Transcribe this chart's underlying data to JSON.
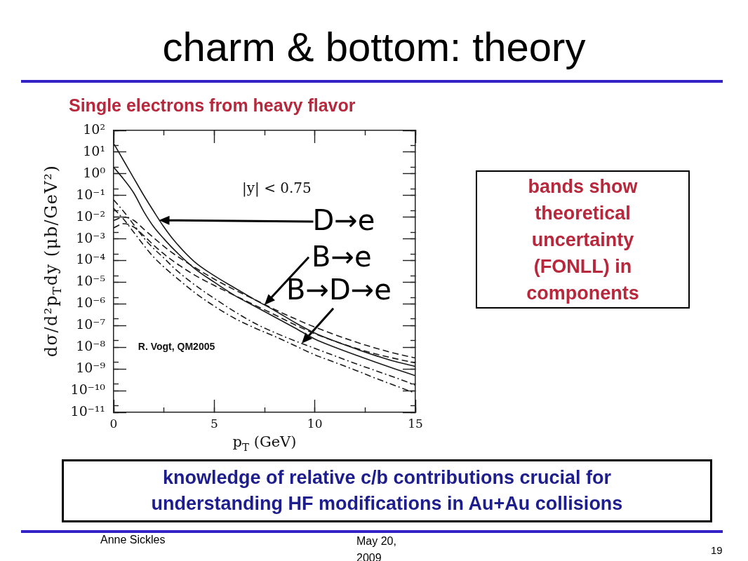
{
  "chart_data": {
    "type": "line",
    "title": "charm & bottom: theory",
    "subtitle": "Single electrons from heavy flavor",
    "xlabel": "p$_{T}$ (GeV)",
    "ylabel": "dσ/d²p$_{T}$dy (μb/GeV²)",
    "x": [
      0,
      0.5,
      1,
      1.5,
      2,
      2.5,
      3,
      4,
      5,
      6,
      7,
      8,
      9,
      10,
      11,
      12,
      13,
      14,
      15
    ],
    "series": [
      {
        "color": "#1a1a1a",
        "line_style": "solid",
        "values": [
          25,
          4.0,
          0.63,
          0.1,
          0.018,
          0.0035,
          0.00085,
          9.1e-05,
          2e-05,
          5.6e-06,
          1.6e-06,
          5e-07,
          1.4e-07,
          4.5e-08,
          1.9e-08,
          8.7e-09,
          4.2e-09,
          2.2e-09,
          1.3e-09
        ]
      },
      {
        "color": "#1a1a1a",
        "line_style": "solid",
        "values": [
          2.0,
          0.56,
          0.13,
          0.018,
          0.0035,
          0.001,
          0.00032,
          4.5e-05,
          1e-05,
          2.5e-06,
          7.9e-07,
          2.5e-07,
          7.9e-08,
          2.4e-08,
          1e-08,
          4.5e-09,
          2.1e-09,
          1e-09,
          4.9e-10
        ]
      },
      {
        "color": "#1a1a1a",
        "line_style": "dashed",
        "values": [
          0.0071,
          0.01,
          0.0071,
          0.0028,
          0.0011,
          0.00045,
          0.0002,
          5e-05,
          1.4e-05,
          4.5e-06,
          1.6e-06,
          5.6e-07,
          2.1e-07,
          8.5e-08,
          3.8e-08,
          1.8e-08,
          9.3e-09,
          5.2e-09,
          3.2e-09
        ]
      },
      {
        "color": "#1a1a1a",
        "line_style": "dashed",
        "values": [
          0.0032,
          0.005,
          0.0035,
          0.0014,
          0.0005,
          0.0002,
          8.9e-05,
          2.2e-05,
          7.1e-06,
          2.5e-06,
          8.9e-07,
          3.2e-07,
          1.1e-07,
          4.2e-08,
          1.9e-08,
          9.3e-09,
          5e-09,
          3e-09,
          1.9e-09
        ]
      },
      {
        "color": "#1a1a1a",
        "line_style": "dashdot",
        "values": [
          0.063,
          0.018,
          0.0045,
          0.0011,
          0.00035,
          0.00013,
          4.5e-05,
          7.9e-06,
          1.8e-06,
          4.5e-07,
          1.3e-07,
          4.8e-08,
          2e-08,
          8.9e-09,
          4e-09,
          1.8e-09,
          8.5e-10,
          4e-10,
          1.8e-10
        ]
      },
      {
        "color": "#1a1a1a",
        "line_style": "dashdot",
        "values": [
          0.025,
          0.0079,
          0.002,
          0.0005,
          0.00014,
          5e-05,
          2e-05,
          3.5e-06,
          7.9e-07,
          2.2e-07,
          7.9e-08,
          3.2e-08,
          1.2e-08,
          4.5e-09,
          2e-09,
          8.9e-10,
          3.8e-10,
          1.7e-10,
          7.6e-11
        ]
      }
    ],
    "log": "y",
    "marker": "none",
    "xlim": [
      0,
      15
    ],
    "xticks": [
      0,
      {
        "value": 2.5,
        "label": null
      },
      5,
      {
        "value": 7.5,
        "label": null
      },
      10,
      {
        "value": 12.5,
        "label": null
      },
      15
    ],
    "ylim": [
      1e-11,
      100
    ],
    "yticks": [
      {
        "value": 1e-11,
        "label": "10⁻¹¹"
      },
      {
        "value": 2e-11,
        "label": null
      },
      {
        "value": 1e-10,
        "label": "10⁻¹⁰"
      },
      {
        "value": 2e-10,
        "label": null
      },
      {
        "value": 1e-09,
        "label": "10⁻⁹"
      },
      {
        "value": 2e-09,
        "label": null
      },
      {
        "value": 1e-08,
        "label": "10⁻⁸"
      },
      {
        "value": 2e-08,
        "label": null
      },
      {
        "value": 1e-07,
        "label": "10⁻⁷"
      },
      {
        "value": 2e-07,
        "label": null
      },
      {
        "value": 1e-06,
        "label": "10⁻⁶"
      },
      {
        "value": 2e-06,
        "label": null
      },
      {
        "value": 1e-05,
        "label": "10⁻⁵"
      },
      {
        "value": 2e-05,
        "label": null
      },
      {
        "value": 0.0001,
        "label": "10⁻⁴"
      },
      {
        "value": 0.0002,
        "label": null
      },
      {
        "value": 0.001,
        "label": "10⁻³"
      },
      {
        "value": 0.002,
        "label": null
      },
      {
        "value": 0.01,
        "label": "10⁻²"
      },
      {
        "value": 0.02,
        "label": null
      },
      {
        "value": 0.1,
        "label": "10⁻¹"
      },
      {
        "value": 0.2,
        "label": null
      },
      {
        "value": 1,
        "label": "10⁰"
      },
      {
        "value": 2,
        "label": null
      },
      {
        "value": 10,
        "label": "10¹"
      },
      {
        "value": 20,
        "label": null
      },
      {
        "value": 100,
        "label": "10²"
      }
    ],
    "annotations": [
      "D→e",
      {
        "text": "B→e",
        "x": 7.5,
        "y": 9e-07
      },
      {
        "text": "B→D→e",
        "x": 9.35,
        "y": 1.5e-08
      },
      "|y| < 0.75",
      "R. Vogt, QM2005",
      "bands show theoretical uncertainty (FONLL) in components",
      "knowledge of relative c/b contributions crucial for understanding HF modifications in Au+Au collisions",
      "Anne Sickles",
      "May 20, 2009",
      "19"
    ]
  }
}
